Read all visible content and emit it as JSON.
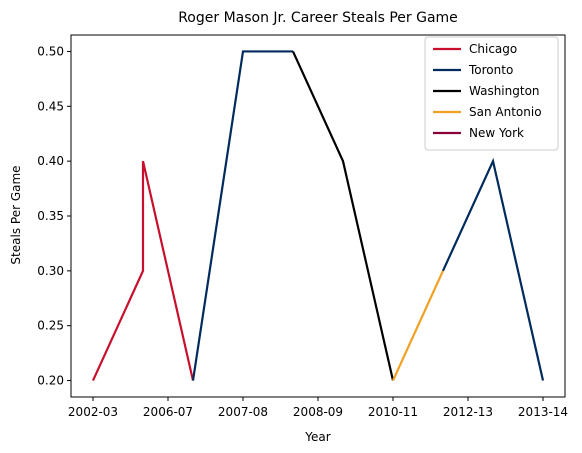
{
  "chart_data": {
    "type": "line",
    "title": "Roger Mason Jr. Career Steals Per Game",
    "xlabel": "Year",
    "ylabel": "Steals Per Game",
    "x_tick_labels": [
      "2002-03",
      "2006-07",
      "2007-08",
      "2008-09",
      "2010-11",
      "2012-13",
      "2013-14"
    ],
    "y_ticks": [
      0.2,
      0.25,
      0.3,
      0.35,
      0.4,
      0.45,
      0.5
    ],
    "ylim": [
      0.185,
      0.515
    ],
    "grid": false,
    "legend_position": "top-right",
    "series": [
      {
        "name": "Chicago",
        "color": "#C8102E",
        "points": [
          {
            "x": 0,
            "y": 0.2
          },
          {
            "x": 1,
            "y": 0.3
          },
          {
            "x": 1,
            "y": 0.4
          },
          {
            "x": 2,
            "y": 0.2
          }
        ]
      },
      {
        "name": "Toronto",
        "color": "#002B5C",
        "points": [
          {
            "x": 2,
            "y": 0.2
          },
          {
            "x": 3,
            "y": 0.5
          },
          {
            "x": 4,
            "y": 0.5
          }
        ]
      },
      {
        "name": "Washington",
        "color": "#000000",
        "points": [
          {
            "x": 4,
            "y": 0.5
          },
          {
            "x": 5,
            "y": 0.4
          },
          {
            "x": 6,
            "y": 0.2
          }
        ]
      },
      {
        "name": "San Antonio",
        "color": "#F0A022",
        "points": [
          {
            "x": 6,
            "y": 0.2
          },
          {
            "x": 7,
            "y": 0.3
          }
        ]
      },
      {
        "name": "New York",
        "color": "#8B0038",
        "points": []
      },
      {
        "name": "",
        "color": "#002B5C",
        "points": [
          {
            "x": 7,
            "y": 0.3
          },
          {
            "x": 8,
            "y": 0.4
          },
          {
            "x": 9,
            "y": 0.2
          }
        ]
      }
    ]
  }
}
